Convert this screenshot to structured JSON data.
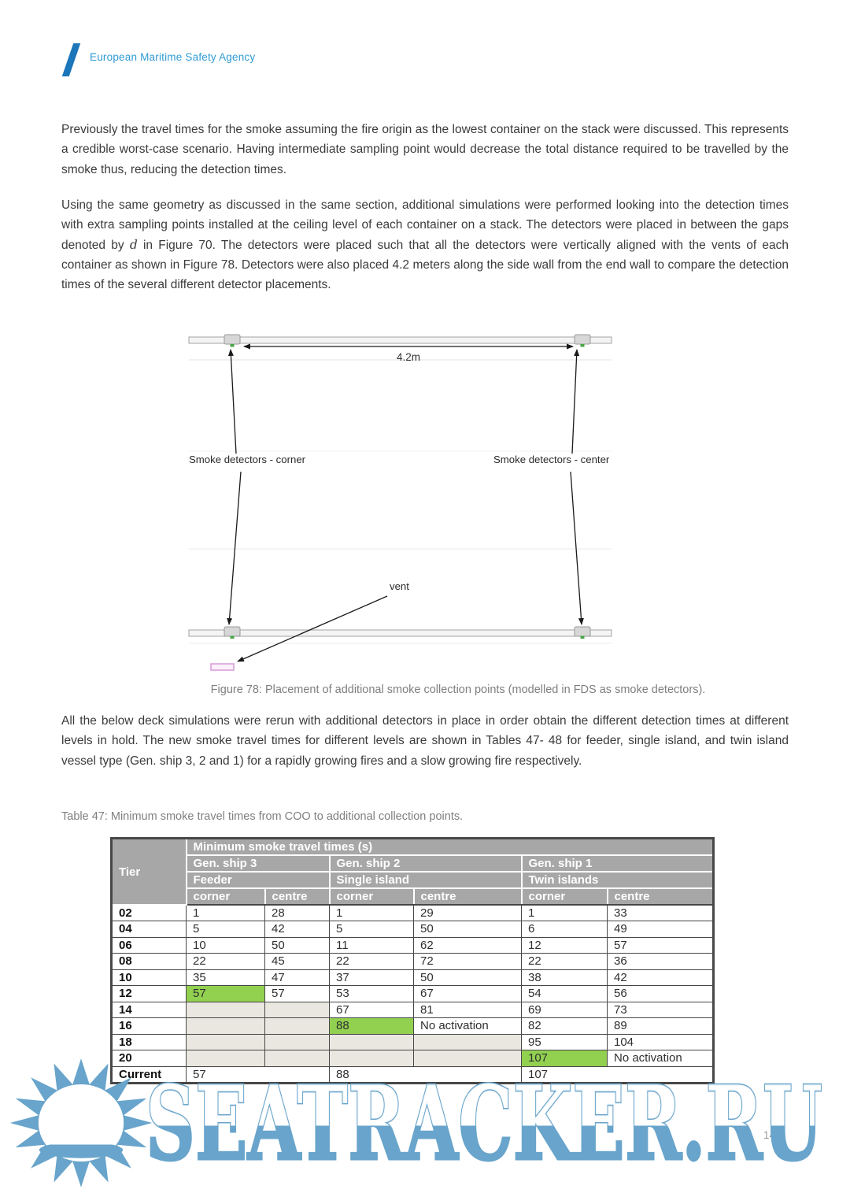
{
  "header": {
    "agency": "European Maritime Safety Agency"
  },
  "paragraphs": {
    "p1": "Previously the travel times for the smoke assuming the fire origin as the lowest container on the stack were discussed. This represents a credible worst-case scenario. Having intermediate sampling point would decrease the total distance required to be travelled by the smoke thus, reducing the detection times.",
    "p2_before": "Using the same geometry as discussed in the same section, additional simulations were performed looking into the detection times with extra sampling points installed at the ceiling level of each container on a stack. The detectors were placed in between the gaps denoted by ",
    "p2_d": "d",
    "p2_after": " in Figure 70. The detectors were placed such that all the detectors were vertically aligned with the vents of each container as shown in Figure 78. Detectors were also placed 4.2 meters along the side wall from the end wall to compare the detection times of the several different detector placements.",
    "p3": "All the below deck simulations were rerun with additional detectors in place in order obtain the different detection times at different levels in hold. The new smoke travel times for different levels are shown in Tables 47- 48 for feeder, single island, and twin island vessel type (Gen. ship 3, 2 and 1) for a rapidly growing fires and a slow growing fire respectively."
  },
  "figure": {
    "dimension_label": "4.2m",
    "label_corner": "Smoke detectors - corner",
    "label_center": "Smoke detectors - center",
    "vent_label": "vent",
    "caption": "Figure 78: Placement of additional smoke collection points (modelled in FDS as smoke detectors)."
  },
  "table": {
    "caption": "Table 47: Minimum smoke travel times from COO to additional collection points.",
    "header": {
      "tier": "Tier",
      "title": "Minimum smoke travel times (s)",
      "ships": [
        "Gen. ship 3",
        "Gen. ship 2",
        "Gen. ship 1"
      ],
      "types": [
        "Feeder",
        "Single island",
        "Twin islands"
      ],
      "cols": [
        "corner",
        "centre",
        "corner",
        "centre",
        "corner",
        "centre"
      ]
    },
    "rows": [
      {
        "tier": "02",
        "cells": [
          {
            "v": "1"
          },
          {
            "v": "28"
          },
          {
            "v": "1"
          },
          {
            "v": "29"
          },
          {
            "v": "1"
          },
          {
            "v": "33"
          }
        ]
      },
      {
        "tier": "04",
        "cells": [
          {
            "v": "5"
          },
          {
            "v": "42"
          },
          {
            "v": "5"
          },
          {
            "v": "50"
          },
          {
            "v": "6"
          },
          {
            "v": "49"
          }
        ]
      },
      {
        "tier": "06",
        "cells": [
          {
            "v": "10"
          },
          {
            "v": "50"
          },
          {
            "v": "11"
          },
          {
            "v": "62"
          },
          {
            "v": "12"
          },
          {
            "v": "57"
          }
        ]
      },
      {
        "tier": "08",
        "cells": [
          {
            "v": "22"
          },
          {
            "v": "45"
          },
          {
            "v": "22"
          },
          {
            "v": "72"
          },
          {
            "v": "22"
          },
          {
            "v": "36"
          }
        ]
      },
      {
        "tier": "10",
        "cells": [
          {
            "v": "35"
          },
          {
            "v": "47"
          },
          {
            "v": "37"
          },
          {
            "v": "50"
          },
          {
            "v": "38"
          },
          {
            "v": "42"
          }
        ]
      },
      {
        "tier": "12",
        "cells": [
          {
            "v": "57",
            "bg": "green"
          },
          {
            "v": "57"
          },
          {
            "v": "53"
          },
          {
            "v": "67"
          },
          {
            "v": "54"
          },
          {
            "v": "56"
          }
        ]
      },
      {
        "tier": "14",
        "cells": [
          {
            "v": "",
            "bg": "beige"
          },
          {
            "v": "",
            "bg": "beige"
          },
          {
            "v": "67"
          },
          {
            "v": "81"
          },
          {
            "v": "69"
          },
          {
            "v": "73"
          }
        ]
      },
      {
        "tier": "16",
        "cells": [
          {
            "v": "",
            "bg": "beige"
          },
          {
            "v": "",
            "bg": "beige"
          },
          {
            "v": "88",
            "bg": "green"
          },
          {
            "v": "No activation"
          },
          {
            "v": "82"
          },
          {
            "v": "89"
          }
        ]
      },
      {
        "tier": "18",
        "cells": [
          {
            "v": "",
            "bg": "beige"
          },
          {
            "v": "",
            "bg": "beige"
          },
          {
            "v": "",
            "bg": "beige"
          },
          {
            "v": "",
            "bg": "beige"
          },
          {
            "v": "95"
          },
          {
            "v": "104"
          }
        ]
      },
      {
        "tier": "20",
        "cells": [
          {
            "v": "",
            "bg": "beige"
          },
          {
            "v": "",
            "bg": "beige"
          },
          {
            "v": "",
            "bg": "beige"
          },
          {
            "v": "",
            "bg": "beige"
          },
          {
            "v": "107",
            "bg": "green"
          },
          {
            "v": "No activation"
          }
        ]
      },
      {
        "tier": "Current",
        "cells": [
          {
            "v": "57",
            "span": 2
          },
          {
            "v": "88",
            "span": 2
          },
          {
            "v": "107",
            "span": 2
          }
        ]
      }
    ]
  },
  "watermark": {
    "text": "SEATRACKER.RU",
    "color": "#68a4cb"
  },
  "page_number": "147",
  "colors": {
    "header_blue": "#2f9bd3",
    "slash_blue": "#1b76ba",
    "table_header_bg": "#a7a7a7",
    "highlight_green": "#92d050",
    "empty_beige": "#e9e7df",
    "watermark_blue": "#68a4cb",
    "vent_pink": "#d79ad7",
    "detector_green": "#46a546"
  }
}
